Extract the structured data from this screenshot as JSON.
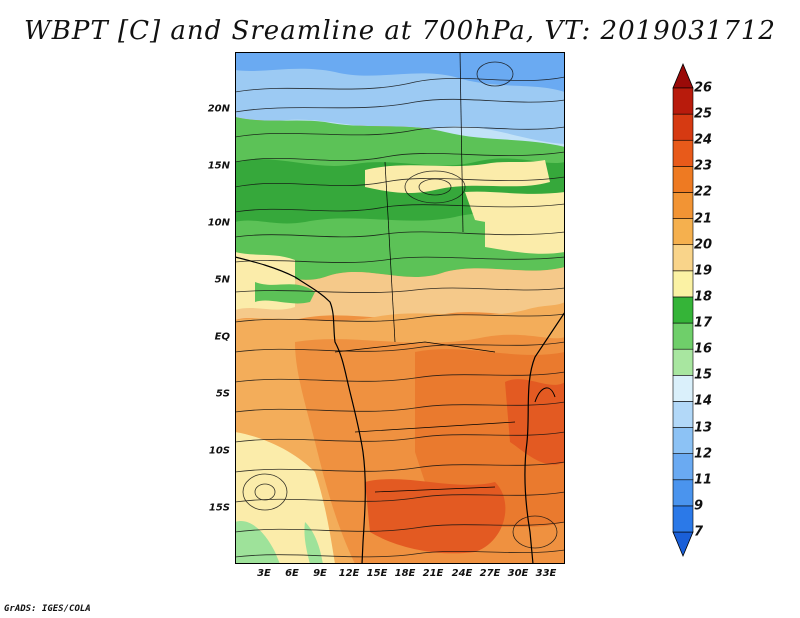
{
  "title": "WBPT [C] and Sreamline at 700hPa, VT: 2019031712",
  "credit": "GrADS: IGES/COLA",
  "latitude_labels": [
    "20N",
    "15N",
    "10N",
    "5N",
    "EQ",
    "5S",
    "10S",
    "15S"
  ],
  "longitude_labels": [
    "3E",
    "6E",
    "9E",
    "12E",
    "15E",
    "18E",
    "21E",
    "24E",
    "27E",
    "30E",
    "33E"
  ],
  "colorbar": {
    "labels": [
      "7",
      "9",
      "11",
      "12",
      "13",
      "14",
      "15",
      "16",
      "17",
      "18",
      "19",
      "20",
      "21",
      "22",
      "23",
      "24",
      "25",
      "26"
    ],
    "colors": [
      "#1a5fd8",
      "#2b79e8",
      "#4a94ee",
      "#6aaaf2",
      "#8cc2f5",
      "#b2d8f8",
      "#daf0fb",
      "#a8e6a0",
      "#6fcf6a",
      "#35b438",
      "#fbf2a4",
      "#f9d48a",
      "#f5b04e",
      "#f29434",
      "#ee7a22",
      "#e85a1a",
      "#d63a12",
      "#b81b0c",
      "#9a0a08"
    ]
  },
  "map_colors": {
    "blue_light": "#9ccaf3",
    "blue_pale": "#c2e2f8",
    "green_light": "#9ee29a",
    "green_mid": "#5cc257",
    "green_dark": "#36a83b",
    "yellow_pale": "#fbecaa",
    "tan": "#f5c98a",
    "orange_light": "#f3ad5a",
    "orange": "#ef9140",
    "orange_dark": "#ea7a2e",
    "red_orange": "#e35a22"
  }
}
